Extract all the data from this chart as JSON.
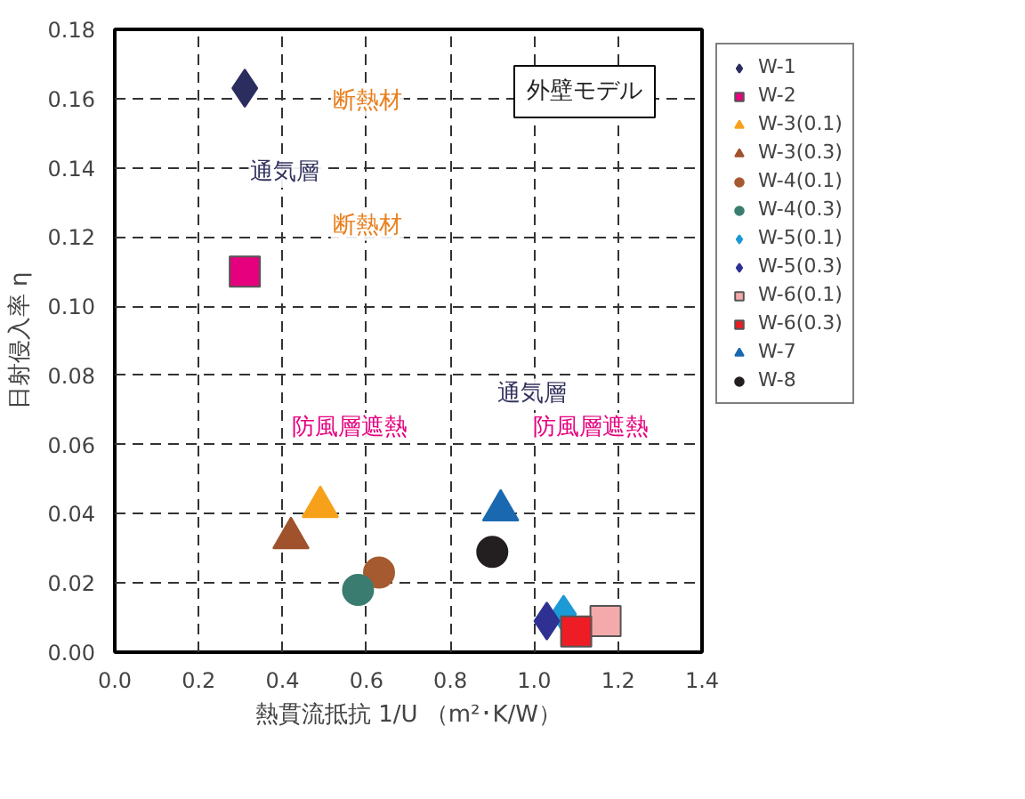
{
  "chart_data": {
    "type": "scatter",
    "xlabel": "熱貫流抵抗 1/U （m²･K/W）",
    "ylabel": "日射侵入率 η",
    "xlim": [
      0,
      1.4
    ],
    "ylim": [
      0,
      0.18
    ],
    "xticks": [
      {
        "value": 0,
        "label": "0.0"
      },
      {
        "value": 0.2,
        "label": "0.2"
      },
      {
        "value": 0.4,
        "label": "0.4"
      },
      {
        "value": 0.6,
        "label": "0.6"
      },
      {
        "value": 0.8,
        "label": "0.8"
      },
      {
        "value": 1.0,
        "label": "1.0"
      },
      {
        "value": 1.2,
        "label": "1.2"
      },
      {
        "value": 1.4,
        "label": "1.4"
      }
    ],
    "yticks": [
      {
        "value": 0,
        "label": "0.00"
      },
      {
        "value": 0.02,
        "label": "0.02"
      },
      {
        "value": 0.04,
        "label": "0.04"
      },
      {
        "value": 0.06,
        "label": "0.06"
      },
      {
        "value": 0.08,
        "label": "0.08"
      },
      {
        "value": 0.1,
        "label": "0.10"
      },
      {
        "value": 0.12,
        "label": "0.12"
      },
      {
        "value": 0.14,
        "label": "0.14"
      },
      {
        "value": 0.16,
        "label": "0.16"
      },
      {
        "value": 0.18,
        "label": "0.18"
      }
    ],
    "grid": true,
    "legend": "right",
    "series": [
      {
        "name": "W-1",
        "color": "#2b2d5e",
        "marker": "diamond",
        "x": [
          0.31
        ],
        "values": [
          0.163
        ]
      },
      {
        "name": "W-2",
        "color": "#e6007e",
        "marker": "square",
        "x": [
          0.31
        ],
        "values": [
          0.11
        ]
      },
      {
        "name": "W-3(0.1)",
        "color": "#f7a11a",
        "marker": "triangle",
        "x": [
          0.49
        ],
        "values": [
          0.042
        ]
      },
      {
        "name": "W-3(0.3)",
        "color": "#a0522d",
        "marker": "triangle",
        "x": [
          0.42
        ],
        "values": [
          0.033
        ]
      },
      {
        "name": "W-4(0.1)",
        "color": "#a65a30",
        "marker": "circle",
        "x": [
          0.63
        ],
        "values": [
          0.023
        ]
      },
      {
        "name": "W-4(0.3)",
        "color": "#3a7d70",
        "marker": "circle",
        "x": [
          0.58
        ],
        "values": [
          0.018
        ]
      },
      {
        "name": "W-5(0.1)",
        "color": "#1c9ad6",
        "marker": "diamond",
        "x": [
          1.07
        ],
        "values": [
          0.011
        ]
      },
      {
        "name": "W-5(0.3)",
        "color": "#2e3192",
        "marker": "diamond",
        "x": [
          1.03
        ],
        "values": [
          0.009
        ]
      },
      {
        "name": "W-6(0.1)",
        "color": "#f4aaaa",
        "marker": "square",
        "x": [
          1.17
        ],
        "values": [
          0.009
        ]
      },
      {
        "name": "W-6(0.3)",
        "color": "#ee1c25",
        "marker": "square",
        "x": [
          1.1
        ],
        "values": [
          0.006
        ]
      },
      {
        "name": "W-7",
        "color": "#1a68b0",
        "marker": "triangle",
        "x": [
          0.92
        ],
        "values": [
          0.041
        ]
      },
      {
        "name": "W-8",
        "color": "#231f20",
        "marker": "circle",
        "x": [
          0.9
        ],
        "values": [
          0.029
        ]
      }
    ],
    "annotations": [
      "外壁モデル",
      "断熱材",
      "通気層",
      "断熱材",
      "通気層",
      "防風層遮熱",
      "防風層遮熱"
    ]
  }
}
